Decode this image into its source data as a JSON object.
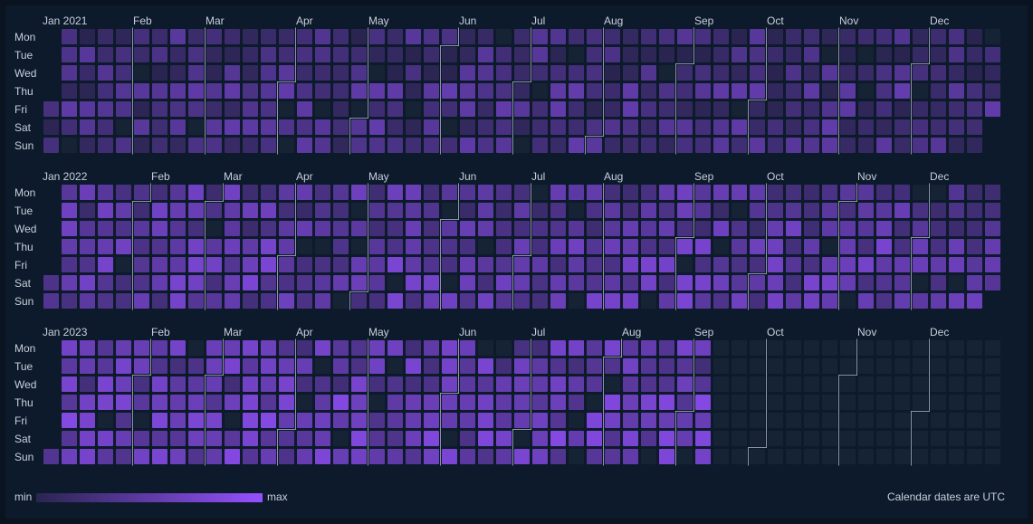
{
  "chart_data": {
    "type": "heatmap",
    "years": [
      2021,
      2022,
      2023
    ],
    "month_labels": [
      [
        "Jan 2021",
        "Feb",
        "Mar",
        "Apr",
        "May",
        "Jun",
        "Jul",
        "Aug",
        "Sep",
        "Oct",
        "Nov",
        "Dec"
      ],
      [
        "Jan 2022",
        "Feb",
        "Mar",
        "Apr",
        "May",
        "Jun",
        "Jul",
        "Aug",
        "Sep",
        "Oct",
        "Nov",
        "Dec"
      ],
      [
        "Jan 2023",
        "Feb",
        "Mar",
        "Apr",
        "May",
        "Jun",
        "Jul",
        "Aug",
        "Sep",
        "Oct",
        "Nov",
        "Dec"
      ]
    ],
    "day_labels": [
      "Mon",
      "Tue",
      "Wed",
      "Thu",
      "Fri",
      "Sat",
      "Sun"
    ],
    "week_starts": "Monday",
    "data_end_date": "2023-09-10",
    "value_scale": [
      0,
      1
    ],
    "estimated_intensity_by_year": {
      "2021": 0.2,
      "2022": 0.42,
      "2023": 0.5
    },
    "colors": {
      "empty": "#152335",
      "min": "#2a2550",
      "max": "#9650ff",
      "background": "#0d1a2b",
      "month_boundary": "#8a96a8"
    },
    "legend": {
      "min_label": "min",
      "max_label": "max"
    },
    "note": "Calendar dates are UTC"
  }
}
